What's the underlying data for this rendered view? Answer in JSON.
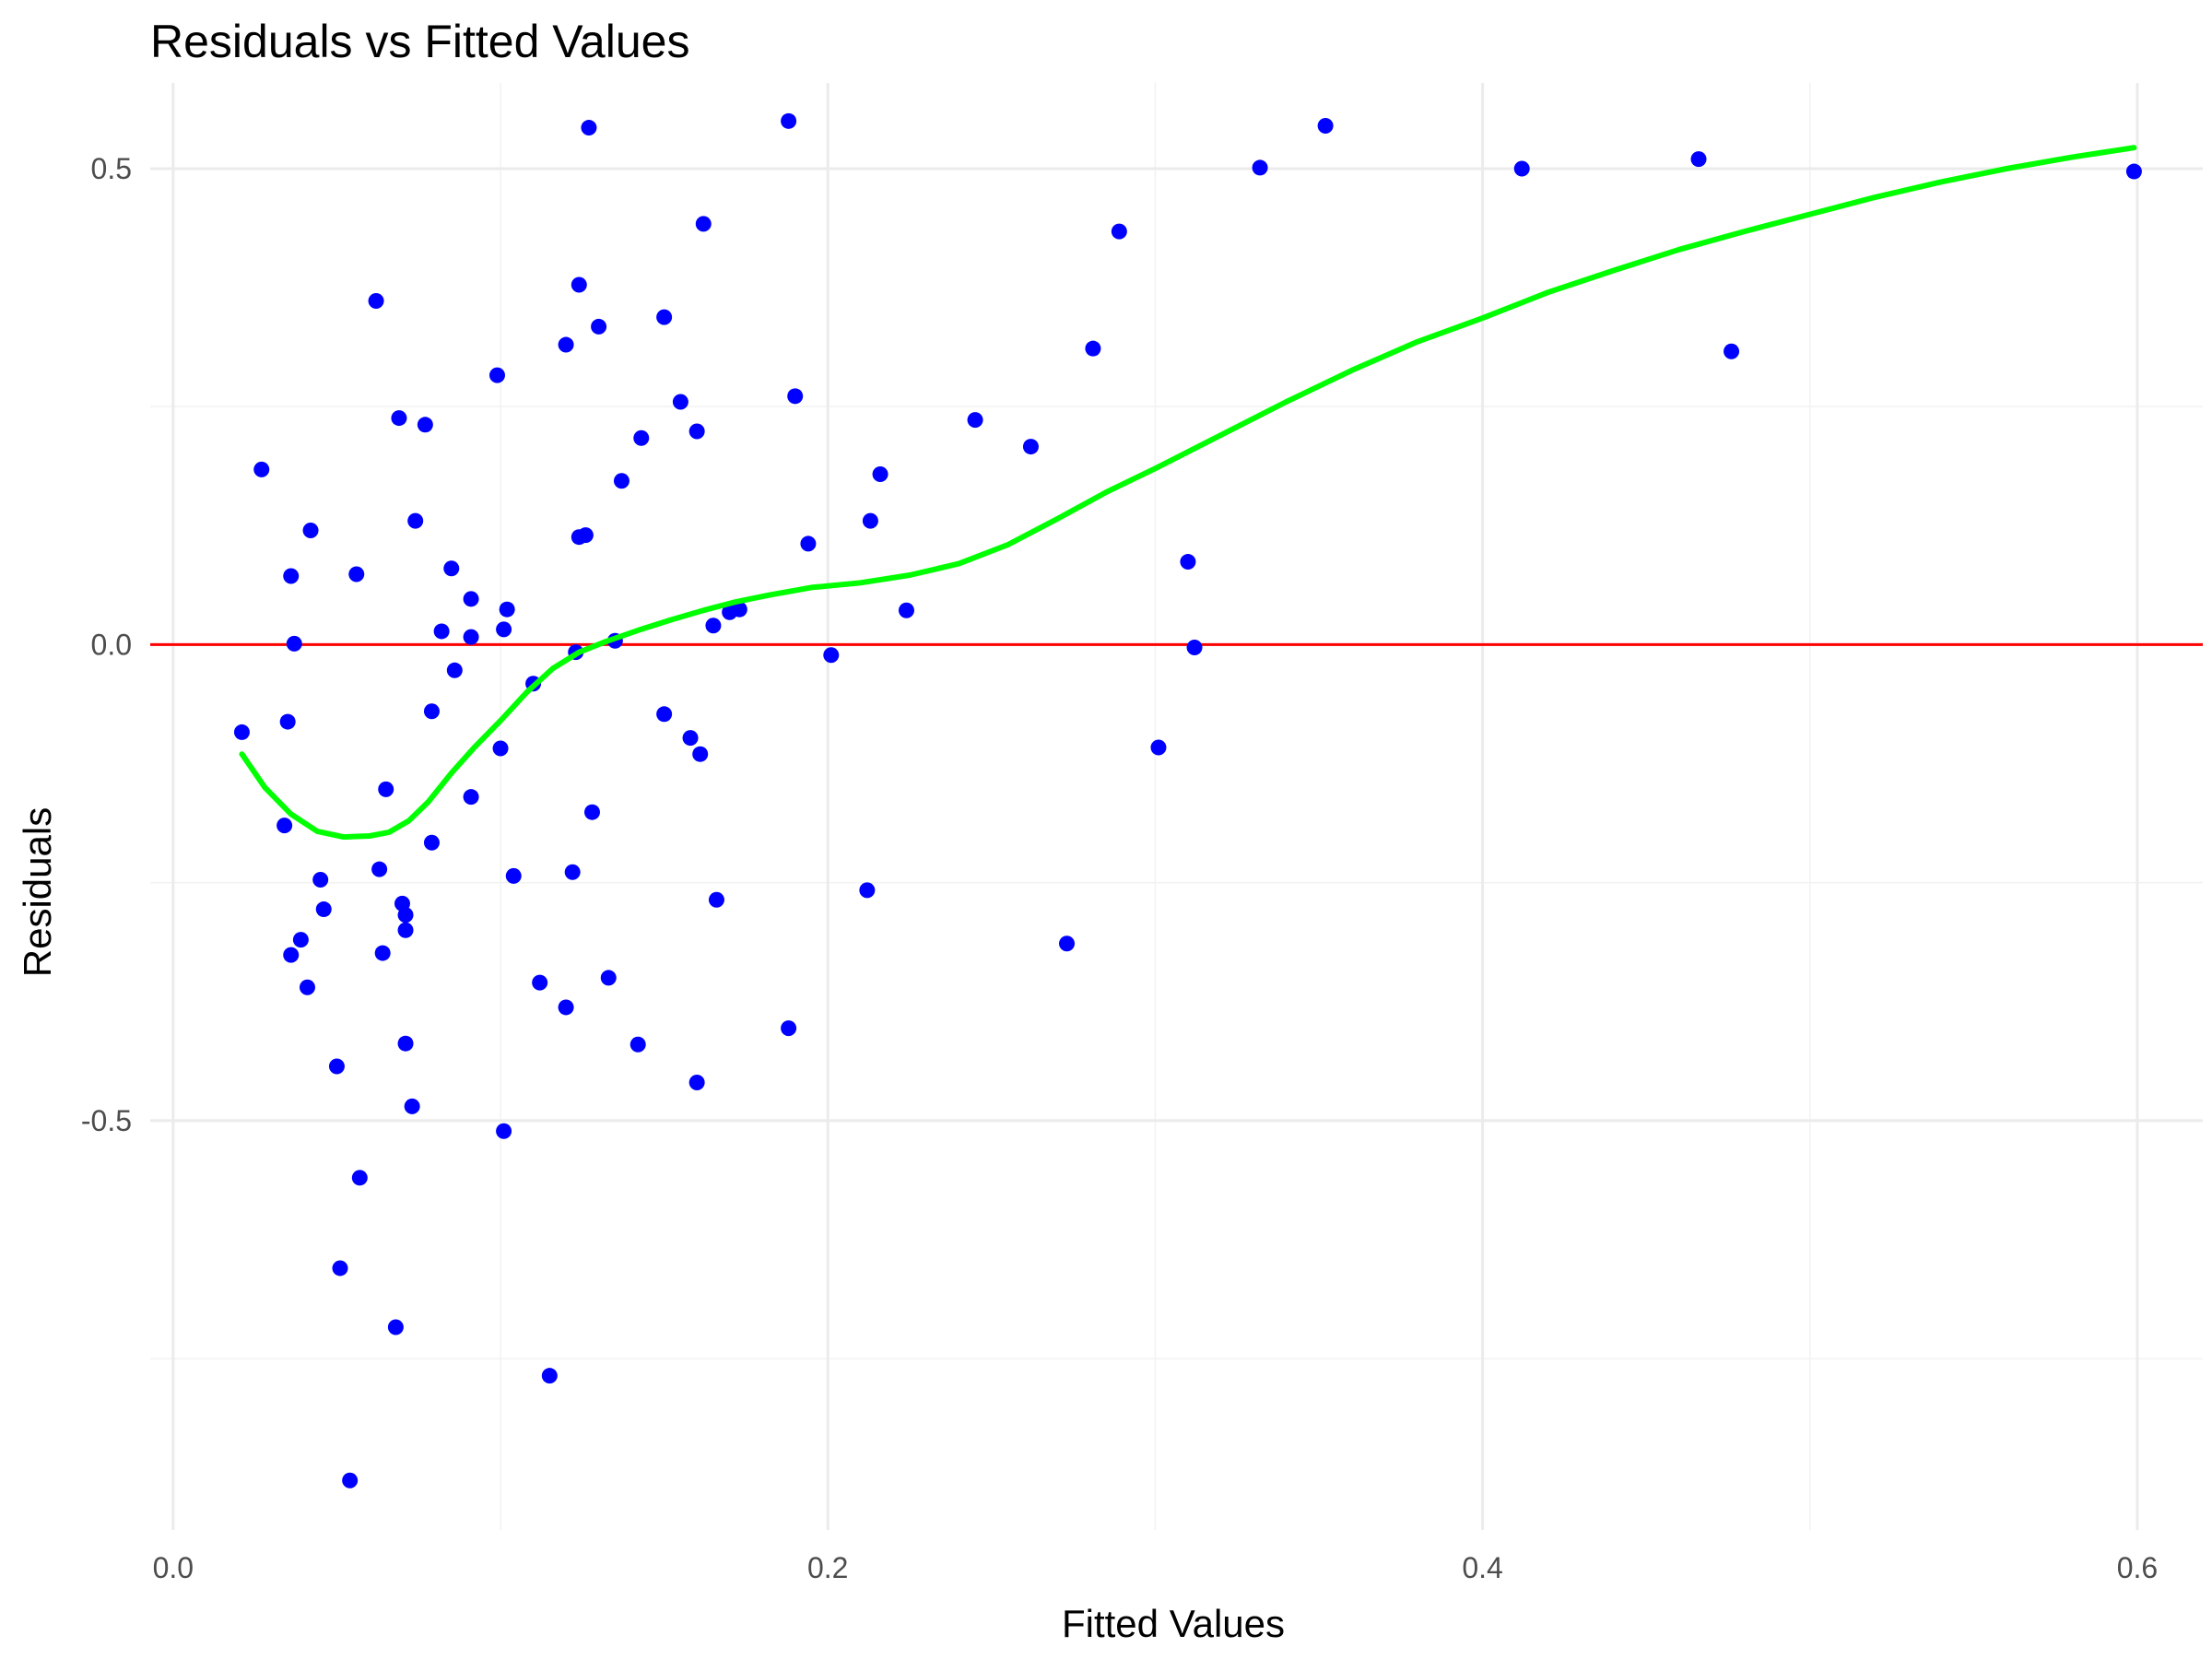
{
  "chart_data": {
    "type": "scatter",
    "title": "Residuals vs Fitted Values",
    "xlabel": "Fitted Values",
    "ylabel": "Residuals",
    "xlim": [
      -0.007,
      0.62
    ],
    "ylim": [
      -0.93,
      0.59
    ],
    "x_ticks": [
      0.0,
      0.2,
      0.4,
      0.6
    ],
    "x_tick_labels": [
      "0.0",
      "0.2",
      "0.4",
      "0.6"
    ],
    "y_ticks": [
      -0.5,
      0.0,
      0.5
    ],
    "y_tick_labels": [
      "-0.5",
      "0.0",
      "0.5"
    ],
    "x_minor": [
      0.1,
      0.3,
      0.5
    ],
    "y_minor": [
      -0.75,
      -0.25,
      0.25
    ],
    "grid": true,
    "legend": "none",
    "colors": {
      "points": "#0000ff",
      "reference_line": "#ff0000",
      "smooth_line": "#00ff00",
      "grid": "#ebebeb"
    },
    "reference_line": {
      "y": 0.0
    },
    "points": [
      [
        0.021,
        -0.092
      ],
      [
        0.027,
        0.184
      ],
      [
        0.034,
        -0.19
      ],
      [
        0.035,
        -0.081
      ],
      [
        0.036,
        0.072
      ],
      [
        0.036,
        -0.326
      ],
      [
        0.037,
        0.001
      ],
      [
        0.039,
        -0.31
      ],
      [
        0.041,
        -0.36
      ],
      [
        0.042,
        0.12
      ],
      [
        0.045,
        -0.247
      ],
      [
        0.046,
        -0.278
      ],
      [
        0.05,
        -0.443
      ],
      [
        0.051,
        -0.655
      ],
      [
        0.054,
        -0.878
      ],
      [
        0.056,
        0.074
      ],
      [
        0.057,
        -0.56
      ],
      [
        0.062,
        0.361
      ],
      [
        0.063,
        -0.236
      ],
      [
        0.064,
        -0.324
      ],
      [
        0.065,
        -0.152
      ],
      [
        0.068,
        -0.717
      ],
      [
        0.069,
        0.238
      ],
      [
        0.07,
        -0.272
      ],
      [
        0.071,
        -0.284
      ],
      [
        0.071,
        -0.3
      ],
      [
        0.071,
        -0.419
      ],
      [
        0.073,
        -0.485
      ],
      [
        0.074,
        0.13
      ],
      [
        0.077,
        0.231
      ],
      [
        0.079,
        -0.07
      ],
      [
        0.079,
        -0.208
      ],
      [
        0.082,
        0.014
      ],
      [
        0.085,
        0.08
      ],
      [
        0.086,
        -0.027
      ],
      [
        0.091,
        -0.16
      ],
      [
        0.091,
        0.048
      ],
      [
        0.091,
        0.008
      ],
      [
        0.099,
        0.283
      ],
      [
        0.1,
        -0.109
      ],
      [
        0.101,
        -0.511
      ],
      [
        0.101,
        0.016
      ],
      [
        0.102,
        0.037
      ],
      [
        0.104,
        -0.243
      ],
      [
        0.11,
        -0.041
      ],
      [
        0.112,
        -0.355
      ],
      [
        0.115,
        -0.768
      ],
      [
        0.12,
        0.315
      ],
      [
        0.12,
        -0.381
      ],
      [
        0.122,
        -0.239
      ],
      [
        0.123,
        -0.008
      ],
      [
        0.124,
        0.378
      ],
      [
        0.124,
        0.113
      ],
      [
        0.126,
        0.115
      ],
      [
        0.127,
        0.543
      ],
      [
        0.128,
        -0.176
      ],
      [
        0.13,
        0.334
      ],
      [
        0.133,
        -0.35
      ],
      [
        0.135,
        0.004
      ],
      [
        0.137,
        0.172
      ],
      [
        0.142,
        -0.42
      ],
      [
        0.143,
        0.217
      ],
      [
        0.15,
        -0.073
      ],
      [
        0.15,
        0.344
      ],
      [
        0.155,
        0.255
      ],
      [
        0.158,
        -0.098
      ],
      [
        0.16,
        0.224
      ],
      [
        0.16,
        -0.46
      ],
      [
        0.161,
        -0.115
      ],
      [
        0.162,
        0.442
      ],
      [
        0.165,
        0.02
      ],
      [
        0.166,
        -0.268
      ],
      [
        0.17,
        0.034
      ],
      [
        0.173,
        0.037
      ],
      [
        0.188,
        -0.403
      ],
      [
        0.188,
        0.55
      ],
      [
        0.19,
        0.261
      ],
      [
        0.194,
        0.106
      ],
      [
        0.201,
        -0.011
      ],
      [
        0.212,
        -0.258
      ],
      [
        0.213,
        0.13
      ],
      [
        0.216,
        0.179
      ],
      [
        0.224,
        0.036
      ],
      [
        0.245,
        0.236
      ],
      [
        0.262,
        0.208
      ],
      [
        0.273,
        -0.314
      ],
      [
        0.281,
        0.311
      ],
      [
        0.289,
        0.434
      ],
      [
        0.301,
        -0.108
      ],
      [
        0.31,
        0.087
      ],
      [
        0.312,
        -0.003
      ],
      [
        0.332,
        0.501
      ],
      [
        0.352,
        0.545
      ],
      [
        0.412,
        0.5
      ],
      [
        0.466,
        0.51
      ],
      [
        0.476,
        0.308
      ],
      [
        0.599,
        0.497
      ]
    ],
    "smooth_line": [
      [
        0.021,
        -0.115
      ],
      [
        0.028,
        -0.15
      ],
      [
        0.036,
        -0.178
      ],
      [
        0.044,
        -0.196
      ],
      [
        0.052,
        -0.202
      ],
      [
        0.06,
        -0.201
      ],
      [
        0.066,
        -0.197
      ],
      [
        0.072,
        -0.185
      ],
      [
        0.078,
        -0.165
      ],
      [
        0.085,
        -0.135
      ],
      [
        0.092,
        -0.108
      ],
      [
        0.1,
        -0.08
      ],
      [
        0.108,
        -0.05
      ],
      [
        0.116,
        -0.025
      ],
      [
        0.124,
        -0.008
      ],
      [
        0.132,
        0.003
      ],
      [
        0.142,
        0.015
      ],
      [
        0.152,
        0.026
      ],
      [
        0.162,
        0.036
      ],
      [
        0.172,
        0.045
      ],
      [
        0.182,
        0.052
      ],
      [
        0.195,
        0.06
      ],
      [
        0.21,
        0.065
      ],
      [
        0.225,
        0.073
      ],
      [
        0.24,
        0.085
      ],
      [
        0.255,
        0.105
      ],
      [
        0.27,
        0.132
      ],
      [
        0.285,
        0.16
      ],
      [
        0.3,
        0.185
      ],
      [
        0.32,
        0.22
      ],
      [
        0.34,
        0.255
      ],
      [
        0.36,
        0.288
      ],
      [
        0.38,
        0.318
      ],
      [
        0.4,
        0.343
      ],
      [
        0.42,
        0.37
      ],
      [
        0.44,
        0.393
      ],
      [
        0.46,
        0.415
      ],
      [
        0.48,
        0.434
      ],
      [
        0.5,
        0.452
      ],
      [
        0.52,
        0.47
      ],
      [
        0.54,
        0.486
      ],
      [
        0.56,
        0.5
      ],
      [
        0.58,
        0.512
      ],
      [
        0.599,
        0.522
      ]
    ]
  }
}
